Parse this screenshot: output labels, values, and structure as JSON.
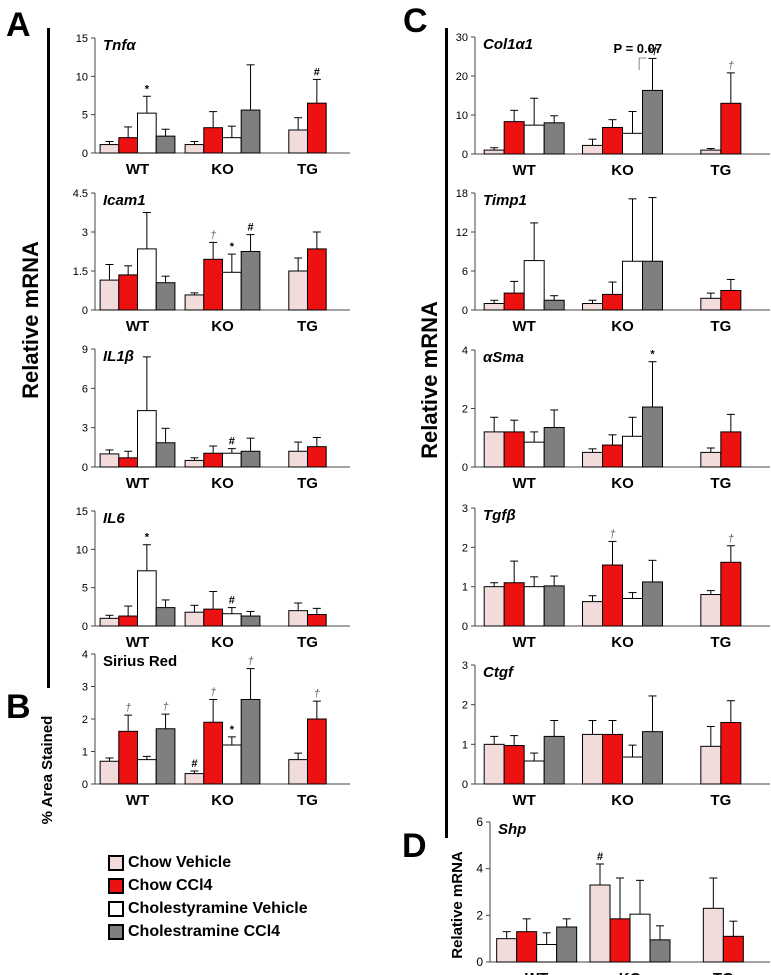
{
  "figure": {
    "panel_labels": [
      "A",
      "B",
      "C",
      "D"
    ],
    "y_labels": {
      "A": "Relative mRNA",
      "B": "% Area Stained",
      "C": "Relative mRNA",
      "D": "Relative mRNA"
    },
    "colors": {
      "chow_vehicle": "#f2dcdb",
      "chow_ccl4": "#ee1111",
      "chol_vehicle": "#ffffff",
      "chol_ccl4": "#7f7f7f"
    }
  },
  "legend": {
    "items": [
      {
        "label": "Chow Vehicle",
        "color": "#f2dcdb"
      },
      {
        "label": "Chow CCl4",
        "color": "#ee1111"
      },
      {
        "label": "Cholestyramine Vehicle",
        "color": "#ffffff"
      },
      {
        "label": "Cholestramine CCl4",
        "color": "#7f7f7f"
      }
    ]
  },
  "chart_data": [
    {
      "id": "tnfa",
      "panel": "A",
      "type": "bar",
      "title": "Tnfα",
      "italic": true,
      "categories": [
        "WT",
        "KO",
        "TG"
      ],
      "ylim": [
        0,
        15
      ],
      "yticks": [
        0,
        5,
        10,
        15
      ],
      "series": [
        {
          "name": "Chow Vehicle",
          "values": [
            1.1,
            1.1,
            3.0
          ],
          "errors": [
            0.4,
            0.4,
            1.6
          ]
        },
        {
          "name": "Chow CCl4",
          "values": [
            2.0,
            3.3,
            6.5
          ],
          "errors": [
            1.4,
            2.1,
            3.1
          ]
        },
        {
          "name": "Cholestyramine Vehicle",
          "values": [
            5.2,
            2.0,
            null
          ],
          "errors": [
            2.2,
            1.5,
            null
          ]
        },
        {
          "name": "Cholestramine CCl4",
          "values": [
            2.2,
            5.6,
            null
          ],
          "errors": [
            0.9,
            5.9,
            null
          ]
        }
      ],
      "annotations": [
        {
          "text": "*",
          "category": "WT",
          "series": 2
        },
        {
          "text": "#",
          "category": "TG",
          "series": 1
        }
      ]
    },
    {
      "id": "icam1",
      "panel": "A",
      "type": "bar",
      "title": "Icam1",
      "italic": true,
      "categories": [
        "WT",
        "KO",
        "TG"
      ],
      "ylim": [
        0,
        4.5
      ],
      "yticks": [
        0,
        1.5,
        3,
        4.5
      ],
      "series": [
        {
          "name": "Chow Vehicle",
          "values": [
            1.15,
            0.58,
            1.5
          ],
          "errors": [
            0.6,
            0.08,
            0.5
          ]
        },
        {
          "name": "Chow CCl4",
          "values": [
            1.35,
            1.95,
            2.35
          ],
          "errors": [
            0.35,
            0.65,
            0.65
          ]
        },
        {
          "name": "Cholestyramine Vehicle",
          "values": [
            2.35,
            1.45,
            null
          ],
          "errors": [
            1.4,
            0.7,
            null
          ]
        },
        {
          "name": "Cholestramine CCl4",
          "values": [
            1.05,
            2.25,
            null
          ],
          "errors": [
            0.25,
            0.65,
            null
          ]
        }
      ],
      "annotations": [
        {
          "text": "†",
          "category": "KO",
          "series": 1
        },
        {
          "text": "*",
          "category": "KO",
          "series": 2
        },
        {
          "text": "#",
          "category": "KO",
          "series": 3
        }
      ]
    },
    {
      "id": "il1b",
      "panel": "A",
      "type": "bar",
      "title": "IL1β",
      "italic": true,
      "categories": [
        "WT",
        "KO",
        "TG"
      ],
      "ylim": [
        0,
        9
      ],
      "yticks": [
        0,
        3,
        6,
        9
      ],
      "series": [
        {
          "name": "Chow Vehicle",
          "values": [
            1.0,
            0.5,
            1.2
          ],
          "errors": [
            0.3,
            0.2,
            0.7
          ]
        },
        {
          "name": "Chow CCl4",
          "values": [
            0.7,
            1.05,
            1.55
          ],
          "errors": [
            0.5,
            0.55,
            0.7
          ]
        },
        {
          "name": "Cholestyramine Vehicle",
          "values": [
            4.3,
            1.05,
            null
          ],
          "errors": [
            4.1,
            0.35,
            null
          ]
        },
        {
          "name": "Cholestramine CCl4",
          "values": [
            1.85,
            1.2,
            null
          ],
          "errors": [
            1.1,
            1.0,
            null
          ]
        }
      ],
      "annotations": [
        {
          "text": "#",
          "category": "KO",
          "series": 2
        }
      ]
    },
    {
      "id": "il6",
      "panel": "A",
      "type": "bar",
      "title": "IL6",
      "italic": true,
      "categories": [
        "WT",
        "KO",
        "TG"
      ],
      "ylim": [
        0,
        15
      ],
      "yticks": [
        0,
        5,
        10,
        15
      ],
      "series": [
        {
          "name": "Chow Vehicle",
          "values": [
            1.0,
            1.8,
            2.0
          ],
          "errors": [
            0.4,
            0.9,
            1.0
          ]
        },
        {
          "name": "Chow CCl4",
          "values": [
            1.3,
            2.2,
            1.5
          ],
          "errors": [
            1.3,
            2.3,
            0.8
          ]
        },
        {
          "name": "Cholestyramine Vehicle",
          "values": [
            7.2,
            1.6,
            null
          ],
          "errors": [
            3.4,
            0.8,
            null
          ]
        },
        {
          "name": "Cholestramine CCl4",
          "values": [
            2.4,
            1.3,
            null
          ],
          "errors": [
            1.0,
            0.6,
            null
          ]
        }
      ],
      "annotations": [
        {
          "text": "*",
          "category": "WT",
          "series": 2
        },
        {
          "text": "#",
          "category": "KO",
          "series": 2
        }
      ]
    },
    {
      "id": "sirius",
      "panel": "B",
      "type": "bar",
      "title": "Sirius Red",
      "italic": false,
      "categories": [
        "WT",
        "KO",
        "TG"
      ],
      "ylim": [
        0,
        4
      ],
      "yticks": [
        0,
        1,
        2,
        3,
        4
      ],
      "series": [
        {
          "name": "Chow Vehicle",
          "values": [
            0.7,
            0.32,
            0.75
          ],
          "errors": [
            0.1,
            0.08,
            0.2
          ]
        },
        {
          "name": "Chow CCl4",
          "values": [
            1.62,
            1.9,
            2.0
          ],
          "errors": [
            0.5,
            0.7,
            0.55
          ]
        },
        {
          "name": "Cholestyramine Vehicle",
          "values": [
            0.75,
            1.2,
            null
          ],
          "errors": [
            0.1,
            0.25,
            null
          ]
        },
        {
          "name": "Cholestramine CCl4",
          "values": [
            1.7,
            2.6,
            null
          ],
          "errors": [
            0.45,
            0.95,
            null
          ]
        }
      ],
      "annotations": [
        {
          "text": "†",
          "category": "WT",
          "series": 1
        },
        {
          "text": "†",
          "category": "WT",
          "series": 3
        },
        {
          "text": "#",
          "category": "KO",
          "series": 0
        },
        {
          "text": "†",
          "category": "KO",
          "series": 1
        },
        {
          "text": "*",
          "category": "KO",
          "series": 2
        },
        {
          "text": "†",
          "category": "KO",
          "series": 3
        },
        {
          "text": "†",
          "category": "TG",
          "series": 1
        }
      ]
    },
    {
      "id": "col1a1",
      "panel": "C",
      "type": "bar",
      "title": "Col1α1",
      "italic": true,
      "categories": [
        "WT",
        "KO",
        "TG"
      ],
      "ylim": [
        0,
        30
      ],
      "yticks": [
        0,
        10,
        20,
        30
      ],
      "series": [
        {
          "name": "Chow Vehicle",
          "values": [
            1.0,
            2.2,
            1.0
          ],
          "errors": [
            0.6,
            1.6,
            0.4
          ]
        },
        {
          "name": "Chow CCl4",
          "values": [
            8.3,
            6.8,
            13.0
          ],
          "errors": [
            2.9,
            2.0,
            7.8
          ]
        },
        {
          "name": "Cholestyramine Vehicle",
          "values": [
            7.4,
            5.3,
            null
          ],
          "errors": [
            6.9,
            5.6,
            null
          ]
        },
        {
          "name": "Cholestramine CCl4",
          "values": [
            8.0,
            16.3,
            null
          ],
          "errors": [
            1.8,
            8.2,
            null
          ]
        }
      ],
      "annotations": [
        {
          "text": "*†",
          "category": "KO",
          "series": 3
        },
        {
          "text": "†",
          "category": "TG",
          "series": 1
        }
      ],
      "bracket": {
        "text": "P = 0.07"
      }
    },
    {
      "id": "timp1",
      "panel": "C",
      "type": "bar",
      "title": "Timp1",
      "italic": true,
      "categories": [
        "WT",
        "KO",
        "TG"
      ],
      "ylim": [
        0,
        18
      ],
      "yticks": [
        0,
        6,
        12,
        18
      ],
      "series": [
        {
          "name": "Chow Vehicle",
          "values": [
            1.0,
            1.0,
            1.8
          ],
          "errors": [
            0.5,
            0.5,
            0.8
          ]
        },
        {
          "name": "Chow CCl4",
          "values": [
            2.6,
            2.4,
            3.0
          ],
          "errors": [
            1.8,
            1.9,
            1.7
          ]
        },
        {
          "name": "Cholestyramine Vehicle",
          "values": [
            7.6,
            7.5,
            null
          ],
          "errors": [
            5.8,
            9.6,
            null
          ]
        },
        {
          "name": "Cholestramine CCl4",
          "values": [
            1.5,
            7.5,
            null
          ],
          "errors": [
            0.7,
            9.8,
            null
          ]
        }
      ],
      "annotations": []
    },
    {
      "id": "asma",
      "panel": "C",
      "type": "bar",
      "title": "αSma",
      "italic": true,
      "categories": [
        "WT",
        "KO",
        "TG"
      ],
      "ylim": [
        0,
        4
      ],
      "yticks": [
        0,
        2,
        4
      ],
      "series": [
        {
          "name": "Chow Vehicle",
          "values": [
            1.2,
            0.5,
            0.5
          ],
          "errors": [
            0.5,
            0.12,
            0.15
          ]
        },
        {
          "name": "Chow CCl4",
          "values": [
            1.2,
            0.75,
            1.2
          ],
          "errors": [
            0.4,
            0.35,
            0.6
          ]
        },
        {
          "name": "Cholestyramine Vehicle",
          "values": [
            0.85,
            1.05,
            null
          ],
          "errors": [
            0.35,
            0.65,
            null
          ]
        },
        {
          "name": "Cholestramine CCl4",
          "values": [
            1.35,
            2.05,
            null
          ],
          "errors": [
            0.6,
            1.55,
            null
          ]
        }
      ],
      "annotations": [
        {
          "text": "*",
          "category": "KO",
          "series": 3
        }
      ]
    },
    {
      "id": "tgfb",
      "panel": "C",
      "type": "bar",
      "title": "Tgfβ",
      "italic": true,
      "categories": [
        "WT",
        "KO",
        "TG"
      ],
      "ylim": [
        0,
        3
      ],
      "yticks": [
        0,
        1,
        2,
        3
      ],
      "series": [
        {
          "name": "Chow Vehicle",
          "values": [
            1.0,
            0.62,
            0.8
          ],
          "errors": [
            0.1,
            0.15,
            0.1
          ]
        },
        {
          "name": "Chow CCl4",
          "values": [
            1.1,
            1.55,
            1.62
          ],
          "errors": [
            0.55,
            0.6,
            0.42
          ]
        },
        {
          "name": "Cholestyramine Vehicle",
          "values": [
            1.0,
            0.7,
            null
          ],
          "errors": [
            0.25,
            0.15,
            null
          ]
        },
        {
          "name": "Cholestramine CCl4",
          "values": [
            1.02,
            1.12,
            null
          ],
          "errors": [
            0.25,
            0.55,
            null
          ]
        }
      ],
      "annotations": [
        {
          "text": "†",
          "category": "KO",
          "series": 1
        },
        {
          "text": "†",
          "category": "TG",
          "series": 1
        }
      ]
    },
    {
      "id": "ctgf",
      "panel": "C",
      "type": "bar",
      "title": "Ctgf",
      "italic": true,
      "categories": [
        "WT",
        "KO",
        "TG"
      ],
      "ylim": [
        0,
        3
      ],
      "yticks": [
        0,
        1,
        2,
        3
      ],
      "series": [
        {
          "name": "Chow Vehicle",
          "values": [
            1.0,
            1.25,
            0.95
          ],
          "errors": [
            0.2,
            0.35,
            0.5
          ]
        },
        {
          "name": "Chow CCl4",
          "values": [
            0.97,
            1.25,
            1.55
          ],
          "errors": [
            0.25,
            0.35,
            0.55
          ]
        },
        {
          "name": "Cholestyramine Vehicle",
          "values": [
            0.58,
            0.68,
            null
          ],
          "errors": [
            0.2,
            0.3,
            null
          ]
        },
        {
          "name": "Cholestramine CCl4",
          "values": [
            1.2,
            1.32,
            null
          ],
          "errors": [
            0.4,
            0.9,
            null
          ]
        }
      ],
      "annotations": []
    },
    {
      "id": "shp",
      "panel": "D",
      "type": "bar",
      "title": "Shp",
      "italic": true,
      "categories": [
        "WT",
        "KO",
        "TG"
      ],
      "ylim": [
        0,
        6
      ],
      "yticks": [
        0,
        2,
        4,
        6
      ],
      "series": [
        {
          "name": "Chow Vehicle",
          "values": [
            1.0,
            3.3,
            2.3
          ],
          "errors": [
            0.3,
            0.9,
            1.3
          ]
        },
        {
          "name": "Chow CCl4",
          "values": [
            1.3,
            1.85,
            1.1
          ],
          "errors": [
            0.55,
            1.75,
            0.65
          ]
        },
        {
          "name": "Cholestyramine Vehicle",
          "values": [
            0.75,
            2.05,
            null
          ],
          "errors": [
            0.5,
            1.45,
            null
          ]
        },
        {
          "name": "Cholestramine CCl4",
          "values": [
            1.5,
            0.95,
            null
          ],
          "errors": [
            0.35,
            0.6,
            null
          ]
        }
      ],
      "annotations": [
        {
          "text": "#",
          "category": "KO",
          "series": 0
        }
      ]
    }
  ]
}
